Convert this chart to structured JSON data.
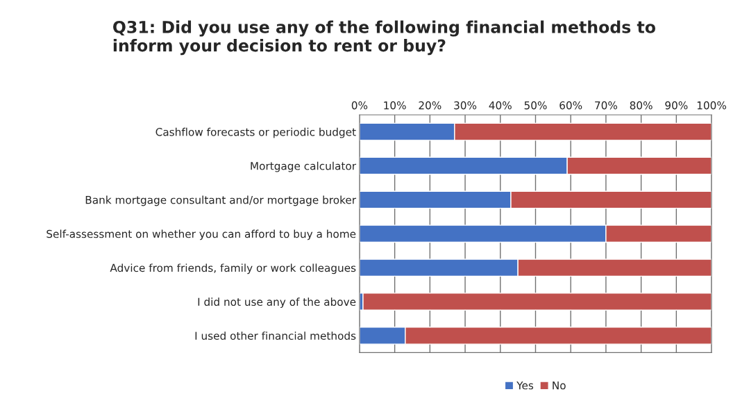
{
  "chart_data": {
    "type": "bar",
    "orientation": "horizontal",
    "stacked": true,
    "title": "Q31: Did you use any of the following financial methods to\ninform your decision to rent or buy?",
    "categories": [
      "Cashflow forecasts or periodic budget",
      "Mortgage calculator",
      "Bank mortgage consultant and/or mortgage broker",
      "Self-assessment on whether you can afford to buy a home",
      "Advice from friends, family or work colleagues",
      "I did not use any of the above",
      "I used other financial methods"
    ],
    "series": [
      {
        "name": "Yes",
        "color": "#4472c4",
        "values": [
          27,
          59,
          43,
          70,
          45,
          1,
          13
        ]
      },
      {
        "name": "No",
        "color": "#c0504d",
        "values": [
          73,
          41,
          57,
          30,
          55,
          99,
          87
        ]
      }
    ],
    "xlim": [
      0,
      100
    ],
    "xticks": [
      {
        "value": 0,
        "label": "0%"
      },
      {
        "value": 10,
        "label": "10%"
      },
      {
        "value": 20,
        "label": "20%"
      },
      {
        "value": 30,
        "label": "30%"
      },
      {
        "value": 40,
        "label": "40%"
      },
      {
        "value": 50,
        "label": "50%"
      },
      {
        "value": 60,
        "label": "60%"
      },
      {
        "value": 70,
        "label": "70%"
      },
      {
        "value": 80,
        "label": "80%"
      },
      {
        "value": 90,
        "label": "90%"
      },
      {
        "value": 100,
        "label": "100%"
      }
    ],
    "grid": "x",
    "legend": "bottom"
  }
}
